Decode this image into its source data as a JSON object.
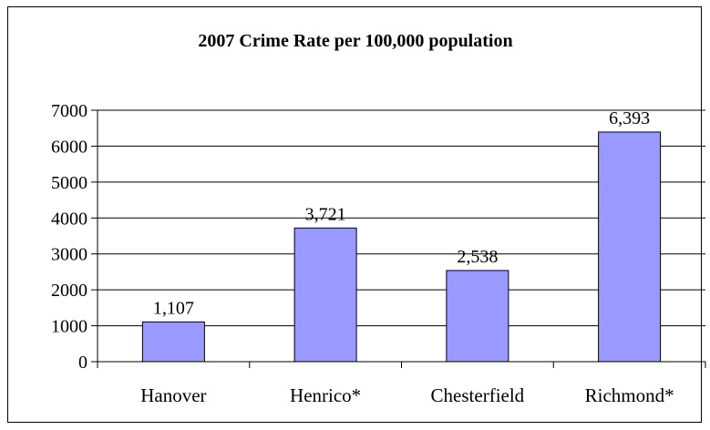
{
  "chart_data": {
    "type": "bar",
    "title": "2007 Crime Rate per 100,000 population",
    "xlabel": "",
    "ylabel": "",
    "categories": [
      "Hanover",
      "Henrico*",
      "Chesterfield",
      "Richmond*"
    ],
    "values": [
      1107,
      3721,
      2538,
      6393
    ],
    "value_labels": [
      "1,107",
      "3,721",
      "2,538",
      "6,393"
    ],
    "ylim": [
      0,
      7000
    ],
    "yticks": [
      0,
      1000,
      2000,
      3000,
      4000,
      5000,
      6000,
      7000
    ],
    "ytick_labels": [
      "0",
      "1000",
      "2000",
      "3000",
      "4000",
      "5000",
      "6000",
      "7000"
    ],
    "grid": true,
    "legend": "none",
    "colors": {
      "bar_fill": "#9999ff",
      "bar_stroke": "#000000",
      "grid": "#000000",
      "text": "#000000"
    }
  }
}
